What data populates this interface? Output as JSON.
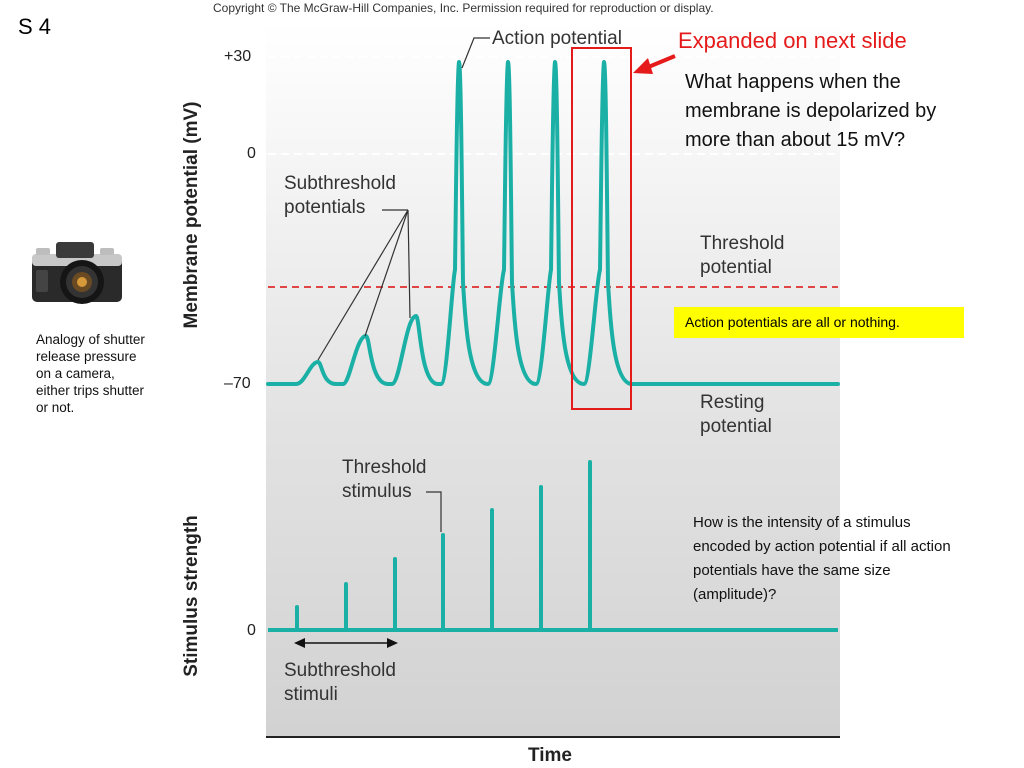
{
  "slide_number": "S 4",
  "copyright": "Copyright © The McGraw-Hill Companies, Inc. Permission required for reproduction or display.",
  "annotations": {
    "expanded_note": "Expanded on next slide",
    "question_depolarized": "What happens when the membrane is depolarized by more than about 15 mV?",
    "all_or_nothing": "Action potentials are all or nothing.",
    "question_intensity": "How is the intensity of a stimulus encoded by action potential if all action potentials have the same size (amplitude)?",
    "analogy_text": "Analogy of shutter release pressure on a camera, either trips shutter or not."
  },
  "figure": {
    "labels": {
      "action_potential": "Action potential",
      "subthreshold_potentials": [
        "Subthreshold",
        "potentials"
      ],
      "threshold_potential": [
        "Threshold",
        "potential"
      ],
      "resting_potential": [
        "Resting",
        "potential"
      ],
      "threshold_stimulus": [
        "Threshold",
        "stimulus"
      ],
      "subthreshold_stimuli": [
        "Subthreshold",
        "stimuli"
      ]
    },
    "membrane_axis": {
      "title": "Membrane potential (mV)",
      "ticks": [
        "+30",
        "0",
        "–70"
      ]
    },
    "stimulus_axis": {
      "title": "Stimulus strength",
      "ticks": [
        "0"
      ]
    },
    "time_axis": {
      "title": "Time"
    },
    "colors": {
      "trace": "#1bb0a6",
      "threshold_line": "#e04545",
      "highlight_box": "#e51b1b",
      "arrow": "#e51b1b"
    }
  }
}
